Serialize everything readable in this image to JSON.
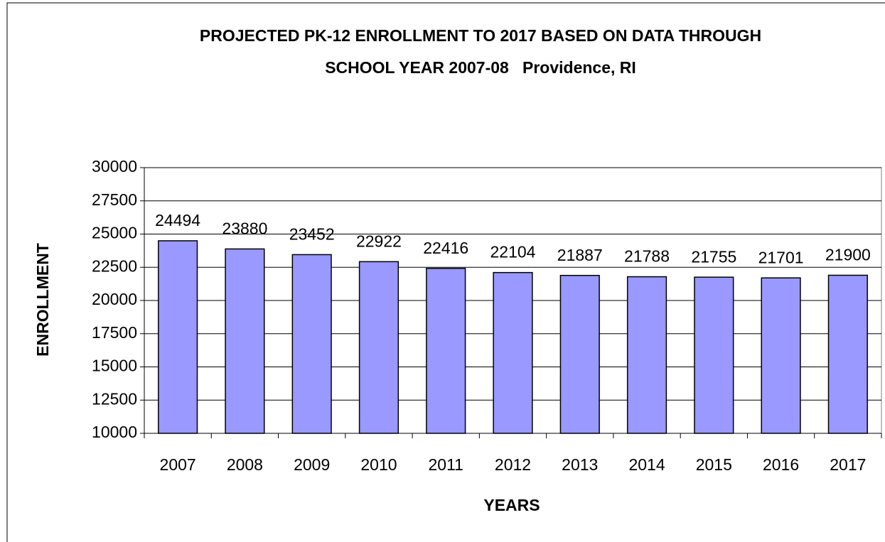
{
  "chart_data": {
    "type": "bar",
    "title": [
      "PROJECTED PK-12 ENROLLMENT TO 2017 BASED ON DATA THROUGH",
      "SCHOOL YEAR 2007-08   Providence, RI"
    ],
    "x_label": "YEARS",
    "y_label": "ENROLLMENT",
    "categories": [
      "2007",
      "2008",
      "2009",
      "2010",
      "2011",
      "2012",
      "2013",
      "2014",
      "2015",
      "2016",
      "2017"
    ],
    "values": [
      24494,
      23880,
      23452,
      22922,
      22416,
      22104,
      21887,
      21788,
      21755,
      21701,
      21900
    ],
    "color": "#9999ff",
    "ylim": [
      10000,
      30000
    ],
    "yticks": [
      10000,
      12500,
      15000,
      17500,
      20000,
      22500,
      25000,
      27500,
      30000
    ],
    "grid": true
  }
}
